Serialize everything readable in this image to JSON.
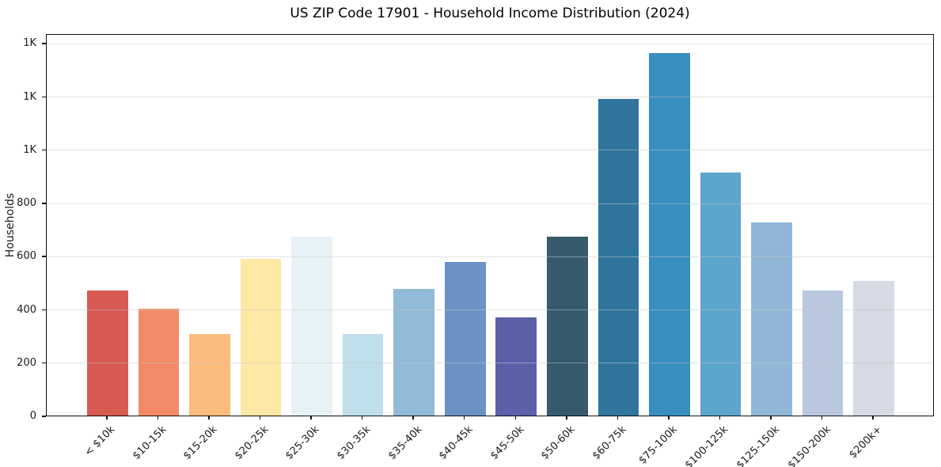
{
  "chart_data": {
    "type": "bar",
    "title": "US ZIP Code 17901 - Household Income Distribution (2024)",
    "xlabel": "",
    "ylabel": "Households",
    "categories": [
      "< $10k",
      "$10-15k",
      "$15-20k",
      "$20-25k",
      "$25-30k",
      "$30-35k",
      "$35-40k",
      "$40-45k",
      "$45-50k",
      "$50-60k",
      "$60-75k",
      "$75-100k",
      "$100-125k",
      "$125-150k",
      "$150-200k",
      "$200k+"
    ],
    "values": [
      470,
      401,
      307,
      590,
      671,
      307,
      477,
      578,
      370,
      672,
      1190,
      1363,
      914,
      726,
      470,
      506
    ],
    "bar_colors": [
      "#d85b52",
      "#f28a68",
      "#fcbc7e",
      "#fde8a6",
      "#e7f2f6",
      "#bedfeb",
      "#90bbd8",
      "#6a92c5",
      "#5b60a9",
      "#365a6c",
      "#2f759e",
      "#388dc1",
      "#5ca5cb",
      "#90b7d7",
      "#b9c8de",
      "#d7d9e4"
    ],
    "yticks": {
      "values": [
        0,
        200,
        400,
        600,
        800,
        1000,
        1200,
        1400
      ],
      "labels": [
        "0",
        "200",
        "400",
        "600",
        "800",
        "1K",
        "1K",
        "1K"
      ]
    },
    "ylim": [
      0,
      1437
    ],
    "xlim": [
      -1.19,
      16.19
    ],
    "bar_width": 0.8,
    "grid": true,
    "grid_color": "rgba(200,200,200,0.5)",
    "background": "#ffffff",
    "spine_color": "#111111",
    "legend": "none"
  }
}
